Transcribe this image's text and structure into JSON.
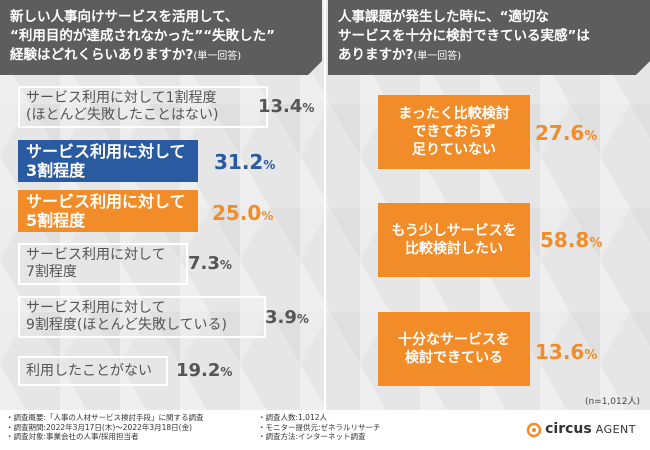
{
  "left_header": {
    "line1": "新しい人事向けサービスを活用して、",
    "line2": "“利用目的が達成されなかった”“失敗した”",
    "line3": "経験はどれくらいありますか?",
    "note": "(単一回答)"
  },
  "right_header": {
    "line1": "人事課題が発生した時に、“適切な",
    "line2": "サービスを十分に検討できている実感”は",
    "line3": "ありますか?",
    "note": "(単一回答)"
  },
  "chart_data": [
    {
      "type": "table",
      "title": "新しい人事向けサービスを活用して、“利用目的が達成されなかった”“失敗した”経験はどれくらいありますか?",
      "categories": [
        "サービス利用に対して1割程度\n(ほとんど失敗したことはない)",
        "サービス利用に対して\n3割程度",
        "サービス利用に対して\n5割程度",
        "サービス利用に対して\n7割程度",
        "サービス利用に対して\n9割程度(ほとんど失敗している)",
        "利用したことがない"
      ],
      "values": [
        13.4,
        31.2,
        25.0,
        7.3,
        3.9,
        19.2
      ],
      "value_labels": [
        "13.4",
        "31.2",
        "25.0",
        "7.3",
        "3.9",
        "19.2"
      ],
      "unit": "%",
      "highlight": [
        "none",
        "blue",
        "orange",
        "none",
        "none",
        "none"
      ]
    },
    {
      "type": "table",
      "title": "人事課題が発生した時に、“適切なサービスを十分に検討できている実感”はありますか?",
      "categories": [
        "まったく比較検討\nできておらず\n足りていない",
        "もう少しサービスを\n比較検討したい",
        "十分なサービスを\n検討できている"
      ],
      "values": [
        27.6,
        58.8,
        13.6
      ],
      "value_labels": [
        "27.6",
        "58.8",
        "13.6"
      ],
      "unit": "%"
    }
  ],
  "sample_note": "(n=1,012人)",
  "footer": {
    "col1": [
      "・調査概要:「人事の人材サービス検討手段」に関する調査",
      "・調査期間:2022年3月17日(木)〜2022年3月18日(金)",
      "・調査対象:事業会社の人事/採用担当者"
    ],
    "col2": [
      "・調査人数:1,012人",
      "・モニター提供元:ゼネラルリサーチ",
      "・調査方法:インターネット調査"
    ],
    "logo_main": "circus",
    "logo_sub": "AGENT"
  },
  "colors": {
    "blue": "#2a5aa0",
    "orange": "#f28c28",
    "header": "#5d5d5d"
  }
}
